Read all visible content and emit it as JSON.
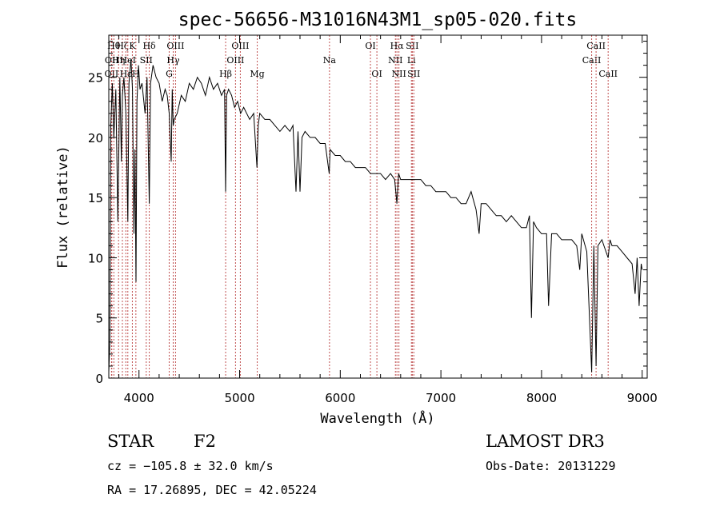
{
  "chart_data": {
    "type": "line",
    "title": "spec-56656-M31016N43M1_sp05-020.fits",
    "xlabel": "Wavelength (Å)",
    "ylabel": "Flux (relative)",
    "xlim": [
      3700,
      9050
    ],
    "ylim": [
      0,
      28.5
    ],
    "x_ticks": [
      4000,
      5000,
      6000,
      7000,
      8000,
      9000
    ],
    "x_tick_labels": [
      "4000",
      "5000",
      "6000",
      "7000",
      "8000",
      "9000"
    ],
    "y_ticks": [
      0,
      5,
      10,
      15,
      20,
      25
    ],
    "y_tick_labels": [
      "0",
      "5",
      "10",
      "15",
      "20",
      "25"
    ],
    "grid": false,
    "series": [
      {
        "name": "flux",
        "color": "#000000",
        "x": [
          3700,
          3710,
          3720,
          3735,
          3750,
          3770,
          3790,
          3810,
          3825,
          3835,
          3850,
          3870,
          3889,
          3900,
          3920,
          3935,
          3950,
          3960,
          3970,
          3980,
          3995,
          4010,
          4030,
          4060,
          4080,
          4102,
          4115,
          4140,
          4170,
          4200,
          4230,
          4260,
          4280,
          4300,
          4320,
          4330,
          4340,
          4350,
          4380,
          4420,
          4460,
          4500,
          4540,
          4580,
          4620,
          4660,
          4700,
          4740,
          4780,
          4820,
          4850,
          4861,
          4870,
          4890,
          4920,
          4950,
          4980,
          5010,
          5040,
          5070,
          5100,
          5140,
          5172,
          5185,
          5200,
          5250,
          5300,
          5350,
          5400,
          5450,
          5500,
          5530,
          5560,
          5580,
          5600,
          5620,
          5650,
          5700,
          5750,
          5800,
          5850,
          5890,
          5900,
          5950,
          6000,
          6050,
          6100,
          6150,
          6200,
          6250,
          6300,
          6350,
          6400,
          6450,
          6500,
          6540,
          6563,
          6580,
          6600,
          6650,
          6700,
          6750,
          6800,
          6850,
          6900,
          6950,
          7000,
          7050,
          7100,
          7150,
          7200,
          7250,
          7300,
          7350,
          7380,
          7400,
          7450,
          7500,
          7550,
          7600,
          7650,
          7700,
          7750,
          7800,
          7850,
          7880,
          7900,
          7920,
          7950,
          8000,
          8050,
          8070,
          8100,
          8150,
          8200,
          8250,
          8300,
          8350,
          8380,
          8400,
          8450,
          8498,
          8520,
          8542,
          8560,
          8600,
          8620,
          8662,
          8680,
          8700,
          8750,
          8800,
          8850,
          8900,
          8930,
          8950,
          8970,
          8990,
          9000
        ],
        "y": [
          0.5,
          3.0,
          21.0,
          24.5,
          20.0,
          24.0,
          13.0,
          25.0,
          18.0,
          23.5,
          25.0,
          22.0,
          13.0,
          24.5,
          26.5,
          24.0,
          12.0,
          19.0,
          8.0,
          23.0,
          26.0,
          24.0,
          24.5,
          22.0,
          25.0,
          14.5,
          24.5,
          26.0,
          25.0,
          24.5,
          23.0,
          24.0,
          23.5,
          22.0,
          18.0,
          24.0,
          21.0,
          21.5,
          22.0,
          23.5,
          23.0,
          24.5,
          24.0,
          25.0,
          24.5,
          23.5,
          25.0,
          24.0,
          24.5,
          23.5,
          24.0,
          15.5,
          23.5,
          24.0,
          23.5,
          22.5,
          23.0,
          22.0,
          22.5,
          22.0,
          21.5,
          22.0,
          17.5,
          21.0,
          22.0,
          21.5,
          21.5,
          21.0,
          20.5,
          21.0,
          20.5,
          21.0,
          15.5,
          20.5,
          15.5,
          20.0,
          20.5,
          20.0,
          20.0,
          19.5,
          19.5,
          17.0,
          19.0,
          18.5,
          18.5,
          18.0,
          18.0,
          17.5,
          17.5,
          17.5,
          17.0,
          17.0,
          17.0,
          16.5,
          17.0,
          16.5,
          14.5,
          17.0,
          16.5,
          16.5,
          16.5,
          16.5,
          16.5,
          16.0,
          16.0,
          15.5,
          15.5,
          15.5,
          15.0,
          15.0,
          14.5,
          14.5,
          15.5,
          14.0,
          12.0,
          14.5,
          14.5,
          14.0,
          13.5,
          13.5,
          13.0,
          13.5,
          13.0,
          12.5,
          12.5,
          13.5,
          5.0,
          13.0,
          12.5,
          12.0,
          12.0,
          6.0,
          12.0,
          12.0,
          11.5,
          11.5,
          11.5,
          11.0,
          9.0,
          12.0,
          10.5,
          0.5,
          11.0,
          1.0,
          11.0,
          11.5,
          11.0,
          10.0,
          11.5,
          11.0,
          11.0,
          10.5,
          10.0,
          9.5,
          7.0,
          10.0,
          6.0,
          9.5,
          9.0
        ]
      }
    ],
    "lines": [
      {
        "wave": 3727,
        "label": "OII",
        "row": 3
      },
      {
        "wave": 3730,
        "label": "OII",
        "row": 2
      },
      {
        "wave": 3750,
        "label": "Hθ",
        "row": 1
      },
      {
        "wave": 3797,
        "label": "Hη",
        "row": 2
      },
      {
        "wave": 3835,
        "label": "Hζ",
        "row": 1
      },
      {
        "wave": 3869,
        "label": "Hε",
        "row": 3
      },
      {
        "wave": 3889,
        "label": "HeI",
        "row": 2
      },
      {
        "wave": 3934,
        "label": "K",
        "row": 1
      },
      {
        "wave": 3969,
        "label": "H",
        "row": 3
      },
      {
        "wave": 4072,
        "label": "SII",
        "row": 2
      },
      {
        "wave": 4102,
        "label": "Hδ",
        "row": 1
      },
      {
        "wave": 4300,
        "label": "G",
        "row": 3
      },
      {
        "wave": 4340,
        "label": "Hγ",
        "row": 2
      },
      {
        "wave": 4363,
        "label": "OIII",
        "row": 1
      },
      {
        "wave": 4861,
        "label": "Hβ",
        "row": 3
      },
      {
        "wave": 4959,
        "label": "OIII",
        "row": 2
      },
      {
        "wave": 5007,
        "label": "OIII",
        "row": 1
      },
      {
        "wave": 5175,
        "label": "Mg",
        "row": 3
      },
      {
        "wave": 5893,
        "label": "Na",
        "row": 2
      },
      {
        "wave": 6300,
        "label": "OI",
        "row": 1
      },
      {
        "wave": 6364,
        "label": "OI",
        "row": 3
      },
      {
        "wave": 6548,
        "label": "NII",
        "row": 2
      },
      {
        "wave": 6563,
        "label": "Hα",
        "row": 1
      },
      {
        "wave": 6583,
        "label": "NII",
        "row": 3
      },
      {
        "wave": 6707,
        "label": "Li",
        "row": 2
      },
      {
        "wave": 6716,
        "label": "SII",
        "row": 1
      },
      {
        "wave": 6731,
        "label": "SII",
        "row": 3
      },
      {
        "wave": 8498,
        "label": "CaII",
        "row": 2
      },
      {
        "wave": 8542,
        "label": "CaII",
        "row": 1
      },
      {
        "wave": 8662,
        "label": "CaII",
        "row": 3
      }
    ],
    "line_color": "#c05050"
  },
  "info": {
    "object_type": "STAR",
    "subclass": "F2",
    "survey": "LAMOST DR3",
    "redshift_line": "cz = −105.8 ± 32.0 km/s",
    "obs_date_line": "Obs-Date: 20131229",
    "coords_line": "RA =  17.26895, DEC =  42.05224"
  }
}
